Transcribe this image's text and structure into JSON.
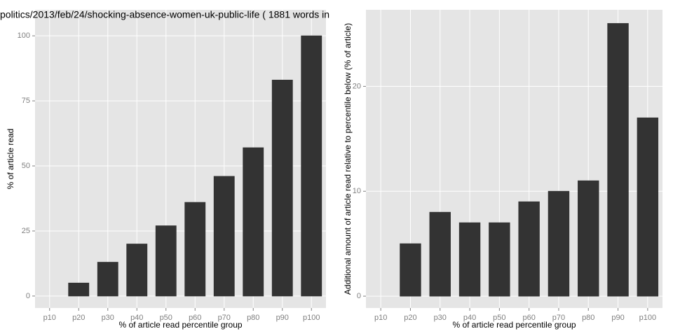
{
  "chart_data": [
    {
      "type": "bar",
      "title": "politics/2013/feb/24/shocking-absence-women-uk-public-life ( 1881 words in",
      "x_label": "% of article read percentile group",
      "y_label": "% of article read",
      "categories": [
        "p10",
        "p20",
        "p30",
        "p40",
        "p50",
        "p60",
        "p70",
        "p80",
        "p90",
        "p100"
      ],
      "values": [
        0,
        5,
        13,
        20,
        27,
        36,
        46,
        57,
        83,
        100
      ],
      "color": "#333333",
      "ylim": [
        -4.6,
        110
      ],
      "yticks": [
        0,
        25,
        50,
        75,
        100
      ],
      "grid": true
    },
    {
      "type": "bar",
      "x_label": "% of article read percentile group",
      "y_label": "Additional amount of article read relative to percentile below (% of article)",
      "categories": [
        "p10",
        "p20",
        "p30",
        "p40",
        "p50",
        "p60",
        "p70",
        "p80",
        "p90",
        "p100"
      ],
      "values": [
        0,
        5,
        8,
        7,
        7,
        9,
        10,
        11,
        26,
        17
      ],
      "color": "#333333",
      "ylim": [
        -1.13,
        27.3
      ],
      "yticks": [
        0,
        10,
        20
      ],
      "grid": true
    }
  ]
}
